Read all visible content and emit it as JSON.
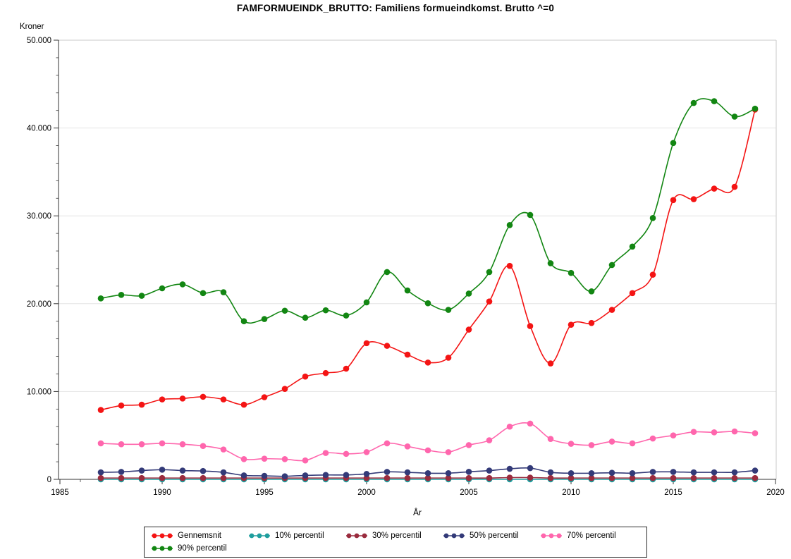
{
  "title": "FAMFORMUEINDK_BRUTTO: Familiens formueindkomst. Brutto ^=0",
  "y_axis": {
    "label": "Kroner",
    "tick_labels": [
      "0",
      "10.000",
      "20.000",
      "30.000",
      "40.000",
      "50.000"
    ],
    "min": 0,
    "max": 50000,
    "major_step": 10000,
    "minor_step": 2000
  },
  "x_axis": {
    "label": "År",
    "tick_labels": [
      1985,
      1990,
      1995,
      2000,
      2005,
      2010,
      2015,
      2020
    ],
    "min": 1985,
    "max": 2020,
    "minor_step": 1
  },
  "style": {
    "background": "#ffffff",
    "grid_color": "#e4e4e4",
    "axis_color": "#333333",
    "frame_color": "#c9c9c9",
    "legend_border": "#2b2b2b"
  },
  "chart_data": {
    "type": "line",
    "title": "FAMFORMUEINDK_BRUTTO: Familiens formueindkomst. Brutto ^=0",
    "xlabel": "År",
    "ylabel": "Kroner",
    "xlim": [
      1985,
      2020
    ],
    "ylim": [
      0,
      50000
    ],
    "grid": true,
    "legend_position": "bottom",
    "x": [
      1987,
      1988,
      1989,
      1990,
      1991,
      1992,
      1993,
      1994,
      1995,
      1996,
      1997,
      1998,
      1999,
      2000,
      2001,
      2002,
      2003,
      2004,
      2005,
      2006,
      2007,
      2008,
      2009,
      2010,
      2011,
      2012,
      2013,
      2014,
      2015,
      2016,
      2017,
      2018,
      2019
    ],
    "series": [
      {
        "name": "Gennemsnit",
        "color": "#f41414",
        "values": [
          7900,
          8400,
          8500,
          9100,
          9200,
          9400,
          9100,
          8500,
          9350,
          10300,
          11700,
          12100,
          12600,
          15500,
          15200,
          14200,
          13300,
          13850,
          17050,
          20250,
          24300,
          17450,
          13200,
          17600,
          17800,
          19300,
          21200,
          23300,
          31800,
          31900,
          33100,
          33300,
          42100
        ]
      },
      {
        "name": "10% percentil",
        "color": "#1f9e9e",
        "values": [
          0,
          0,
          0,
          0,
          0,
          0,
          0,
          0,
          0,
          0,
          0,
          0,
          0,
          0,
          0,
          0,
          0,
          0,
          0,
          0,
          0,
          0,
          0,
          0,
          0,
          0,
          0,
          0,
          0,
          0,
          0,
          0,
          0
        ]
      },
      {
        "name": "30% percentil",
        "color": "#9a2c3e",
        "values": [
          150,
          150,
          150,
          150,
          150,
          150,
          150,
          150,
          150,
          150,
          150,
          150,
          150,
          150,
          150,
          150,
          150,
          150,
          150,
          150,
          200,
          200,
          150,
          150,
          150,
          150,
          150,
          150,
          150,
          150,
          150,
          150,
          150
        ]
      },
      {
        "name": "50% percentil",
        "color": "#333a78",
        "values": [
          800,
          850,
          1000,
          1100,
          1000,
          950,
          800,
          450,
          400,
          350,
          450,
          500,
          500,
          620,
          850,
          800,
          700,
          700,
          860,
          1000,
          1200,
          1280,
          800,
          700,
          700,
          750,
          700,
          850,
          850,
          800,
          800,
          800,
          1000
        ]
      },
      {
        "name": "70% percentil",
        "color": "#ff66ad",
        "values": [
          4100,
          4000,
          4000,
          4100,
          4000,
          3800,
          3400,
          2300,
          2350,
          2300,
          2150,
          3000,
          2900,
          3100,
          4100,
          3750,
          3300,
          3100,
          3900,
          4450,
          6000,
          6350,
          4600,
          4050,
          3900,
          4300,
          4100,
          4650,
          5000,
          5400,
          5350,
          5450,
          5250
        ]
      },
      {
        "name": "90% percentil",
        "color": "#128612",
        "values": [
          20600,
          21000,
          20900,
          21750,
          22200,
          21200,
          21300,
          18000,
          18250,
          19200,
          18400,
          19250,
          18650,
          20150,
          23600,
          21500,
          20050,
          19300,
          21150,
          23600,
          28950,
          30100,
          24600,
          23500,
          21400,
          24400,
          26500,
          29750,
          38300,
          42850,
          43050,
          41300,
          42200
        ]
      }
    ]
  }
}
